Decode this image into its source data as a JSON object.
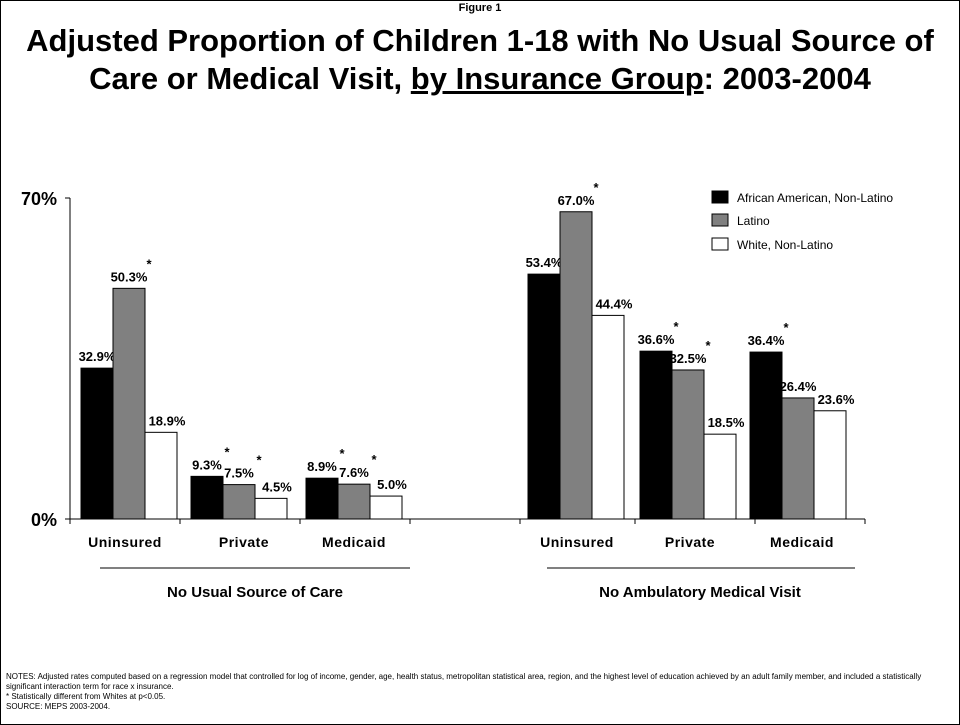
{
  "figure_label": "Figure 1",
  "title": {
    "part1": "Adjusted Proportion of Children 1-18 with No Usual Source of Care or Medical Visit, ",
    "underlined": "by Insurance Group",
    "part2": ": 2003-2004"
  },
  "notes": {
    "line1": "NOTES: Adjusted rates computed based on a regression model that controlled for log of income, gender, age, health status, metropolitan statistical area, region, and the highest level of education achieved by an adult family member, and included a statistically significant interaction term for race x insurance.",
    "line2": "* Statistically different from Whites at p<0.05.",
    "line3": "SOURCE: MEPS 2003-2004."
  },
  "colors": {
    "african_american": "#000000",
    "latino": "#808080",
    "white": "#ffffff"
  },
  "chart_data": {
    "type": "bar",
    "title": "Adjusted Proportion of Children 1-18 with No Usual Source of Care or Medical Visit, by Insurance Group: 2003-2004",
    "ylim": [
      0,
      70
    ],
    "y_ticks": [
      "0%",
      "70%"
    ],
    "legend_position": "top-right",
    "grid": false,
    "series_names": [
      "African American, Non-Latino",
      "Latino",
      "White, Non-Latino"
    ],
    "groups": [
      {
        "name": "No Usual Source of Care",
        "categories": [
          {
            "name": "Uninsured",
            "values": [
              32.9,
              50.3,
              18.9
            ],
            "labels": [
              "32.9%",
              "50.3%",
              "18.9%"
            ],
            "significant": [
              true,
              true,
              false
            ]
          },
          {
            "name": "Private",
            "values": [
              9.3,
              7.5,
              4.5
            ],
            "labels": [
              "9.3%",
              "7.5%",
              "4.5%"
            ],
            "significant": [
              true,
              true,
              false
            ]
          },
          {
            "name": "Medicaid",
            "values": [
              8.9,
              7.6,
              5.0
            ],
            "labels": [
              "8.9%",
              "7.6%",
              "5.0%"
            ],
            "significant": [
              true,
              true,
              false
            ]
          }
        ]
      },
      {
        "name": "No Ambulatory Medical Visit",
        "categories": [
          {
            "name": "Uninsured",
            "values": [
              53.4,
              67.0,
              44.4
            ],
            "labels": [
              "53.4%",
              "67.0%",
              "44.4%"
            ],
            "significant": [
              false,
              true,
              false
            ]
          },
          {
            "name": "Private",
            "values": [
              36.6,
              32.5,
              18.5
            ],
            "labels": [
              "36.6%",
              "32.5%",
              "18.5%"
            ],
            "significant": [
              true,
              true,
              false
            ]
          },
          {
            "name": "Medicaid",
            "values": [
              36.4,
              26.4,
              23.6
            ],
            "labels": [
              "36.4%",
              "26.4%",
              "23.6%"
            ],
            "significant": [
              true,
              false,
              false
            ]
          }
        ]
      }
    ]
  }
}
